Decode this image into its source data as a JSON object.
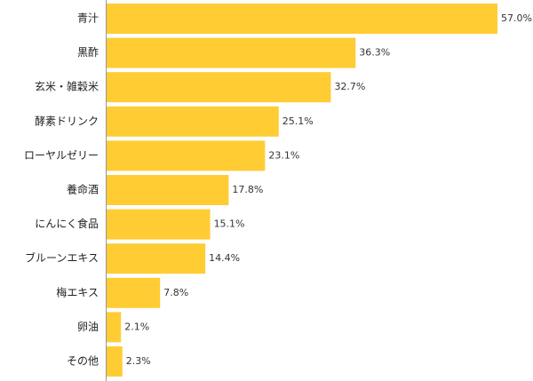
{
  "chart_data": {
    "type": "bar",
    "orientation": "horizontal",
    "categories": [
      "青汁",
      "黒酢",
      "玄米・雑穀米",
      "酵素ドリンク",
      "ローヤルゼリー",
      "養命酒",
      "にんにく食品",
      "ブルーンエキス",
      "梅エキス",
      "卵油",
      "その他"
    ],
    "values": [
      57.0,
      36.3,
      32.7,
      25.1,
      23.1,
      17.8,
      15.1,
      14.4,
      7.8,
      2.1,
      2.3
    ],
    "value_labels": [
      "57.0%",
      "36.3%",
      "32.7%",
      "25.1%",
      "23.1%",
      "17.8%",
      "15.1%",
      "14.4%",
      "7.8%",
      "2.1%",
      "2.3%"
    ],
    "unit": "%",
    "xlim": [
      0,
      60
    ],
    "grid": false,
    "legend": "none",
    "colors": {
      "bar": "#ffcc33",
      "axis": "#999999"
    }
  }
}
